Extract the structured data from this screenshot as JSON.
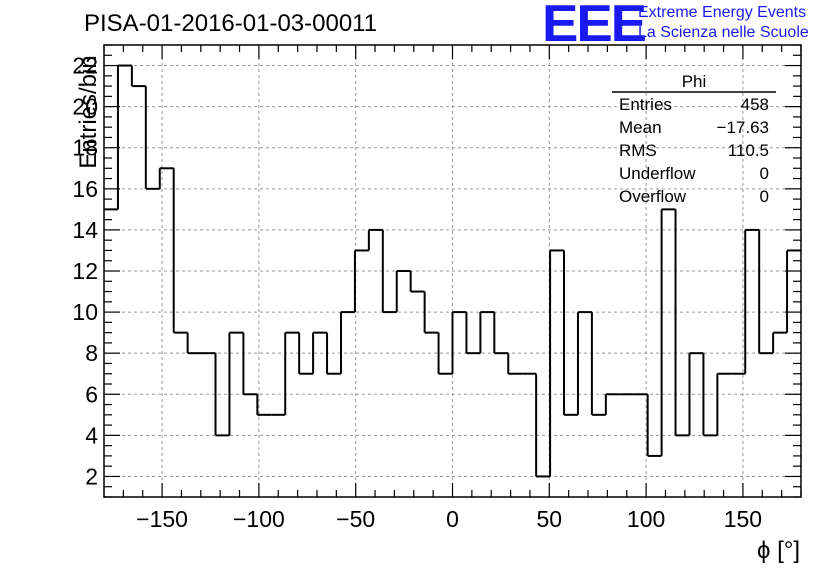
{
  "header": {
    "title": "PISA-01-2016-01-03-00011",
    "logo_text": "EEE",
    "logo_line1": "Extreme Energy Events",
    "logo_line2": "La Scienza nelle Scuole"
  },
  "colors": {
    "logo": "#1a1af0",
    "line": "#000000",
    "grid": "#9a9a9a"
  },
  "stats_box": {
    "name": "Phi",
    "rows": [
      {
        "label": "Entries",
        "value": "458"
      },
      {
        "label": "Mean",
        "value": "−17.63"
      },
      {
        "label": "RMS",
        "value": "110.5"
      },
      {
        "label": "Underflow",
        "value": "0"
      },
      {
        "label": "Overflow",
        "value": "0"
      }
    ]
  },
  "chart_data": {
    "type": "histogram",
    "title": "PISA-01-2016-01-03-00011",
    "xlabel": "ϕ [°]",
    "ylabel": "Entries/bin",
    "xlim": [
      -180,
      180
    ],
    "ylim": [
      1,
      23
    ],
    "grid": true,
    "bin_width": 7.2,
    "x_ticks": [
      -150,
      -100,
      -50,
      0,
      50,
      100,
      150
    ],
    "x_tick_labels": [
      "−150",
      "−100",
      "−50",
      "0",
      "50",
      "100",
      "150"
    ],
    "y_ticks": [
      2,
      4,
      6,
      8,
      10,
      12,
      14,
      16,
      18,
      20,
      22
    ],
    "y_tick_labels": [
      "2",
      "4",
      "6",
      "8",
      "10",
      "12",
      "14",
      "16",
      "18",
      "20",
      "22"
    ],
    "bin_edges": [
      -180,
      -172.8,
      -165.6,
      -158.4,
      -151.2,
      -144,
      -136.8,
      -129.6,
      -122.4,
      -115.2,
      -108,
      -100.8,
      -93.6,
      -86.4,
      -79.2,
      -72,
      -64.8,
      -57.6,
      -50.4,
      -43.2,
      -36,
      -28.8,
      -21.6,
      -14.4,
      -7.2,
      0,
      7.2,
      14.4,
      21.6,
      28.8,
      36,
      43.2,
      50.4,
      57.6,
      64.8,
      72,
      79.2,
      86.4,
      93.6,
      100.8,
      108,
      115.2,
      122.4,
      129.6,
      136.8,
      144,
      151.2,
      158.4,
      165.6,
      172.8,
      180
    ],
    "counts": [
      15,
      22,
      21,
      16,
      17,
      9,
      8,
      8,
      4,
      9,
      6,
      5,
      5,
      9,
      7,
      9,
      7,
      10,
      13,
      14,
      10,
      12,
      11,
      9,
      7,
      10,
      8,
      10,
      8,
      7,
      7,
      2,
      13,
      5,
      10,
      5,
      6,
      6,
      6,
      3,
      15,
      4,
      8,
      4,
      7,
      7,
      14,
      8,
      9,
      13
    ]
  }
}
